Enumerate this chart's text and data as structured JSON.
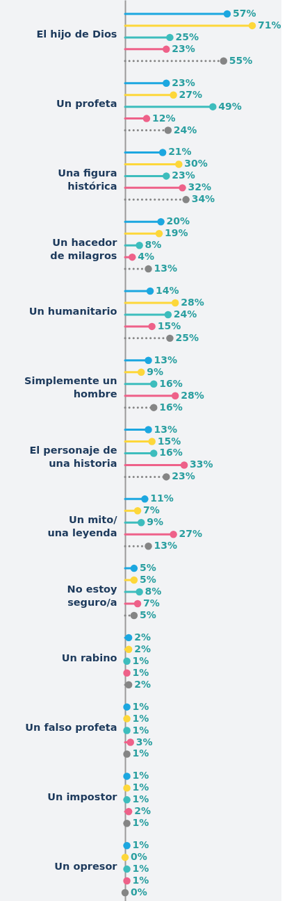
{
  "chart_data": {
    "type": "lollipop",
    "orientation": "horizontal",
    "marker": "circle",
    "tick_labels": "y",
    "categories": [
      "El hijo de Dios",
      "Un profeta",
      "Una figura\nhistórica",
      "Un hacedor\nde milagros",
      "Un humanitario",
      "Simplemente un\nhombre",
      "El personaje de\nuna historia",
      "Un mito/\nuna leyenda",
      "No estoy\nseguro/a",
      "Un rabino",
      "Un falso profeta",
      "Un impostor",
      "Un opresor"
    ],
    "series": [
      {
        "color": "#1ca7e0",
        "line_style": "solid",
        "values": [
          57,
          23,
          21,
          20,
          14,
          13,
          13,
          11,
          5,
          2,
          1,
          1,
          1
        ],
        "value_labels": [
          "57%",
          "23%",
          "21%",
          "20%",
          "14%",
          "13%",
          "13%",
          "11%",
          "5%",
          "2%",
          "1%",
          "1%",
          "1%"
        ]
      },
      {
        "color": "#fdd73a",
        "line_style": "solid",
        "values": [
          71,
          27,
          30,
          19,
          28,
          9,
          15,
          7,
          5,
          2,
          1,
          1,
          0
        ],
        "value_labels": [
          "71%",
          "27%",
          "30%",
          "19%",
          "28%",
          "9%",
          "15%",
          "7%",
          "5%",
          "2%",
          "1%",
          "1%",
          "0%"
        ]
      },
      {
        "color": "#3dbdbd",
        "line_style": "solid",
        "values": [
          25,
          49,
          23,
          8,
          24,
          16,
          16,
          9,
          8,
          1,
          1,
          1,
          1
        ],
        "value_labels": [
          "25%",
          "49%",
          "23%",
          "8%",
          "24%",
          "16%",
          "16%",
          "9%",
          "8%",
          "1%",
          "1%",
          "1%",
          "1%"
        ]
      },
      {
        "color": "#ee6189",
        "line_style": "solid",
        "values": [
          23,
          12,
          32,
          4,
          15,
          28,
          33,
          27,
          7,
          1,
          3,
          2,
          1
        ],
        "value_labels": [
          "23%",
          "12%",
          "32%",
          "4%",
          "15%",
          "28%",
          "33%",
          "27%",
          "7%",
          "1%",
          "3%",
          "2%",
          "1%"
        ]
      },
      {
        "color": "#858585",
        "line_style": "dotted",
        "values": [
          55,
          24,
          34,
          13,
          25,
          16,
          23,
          13,
          5,
          2,
          1,
          1,
          0
        ],
        "value_labels": [
          "55%",
          "24%",
          "34%",
          "13%",
          "25%",
          "16%",
          "23%",
          "13%",
          "5%",
          "2%",
          "1%",
          "1%",
          "0%"
        ]
      }
    ]
  }
}
